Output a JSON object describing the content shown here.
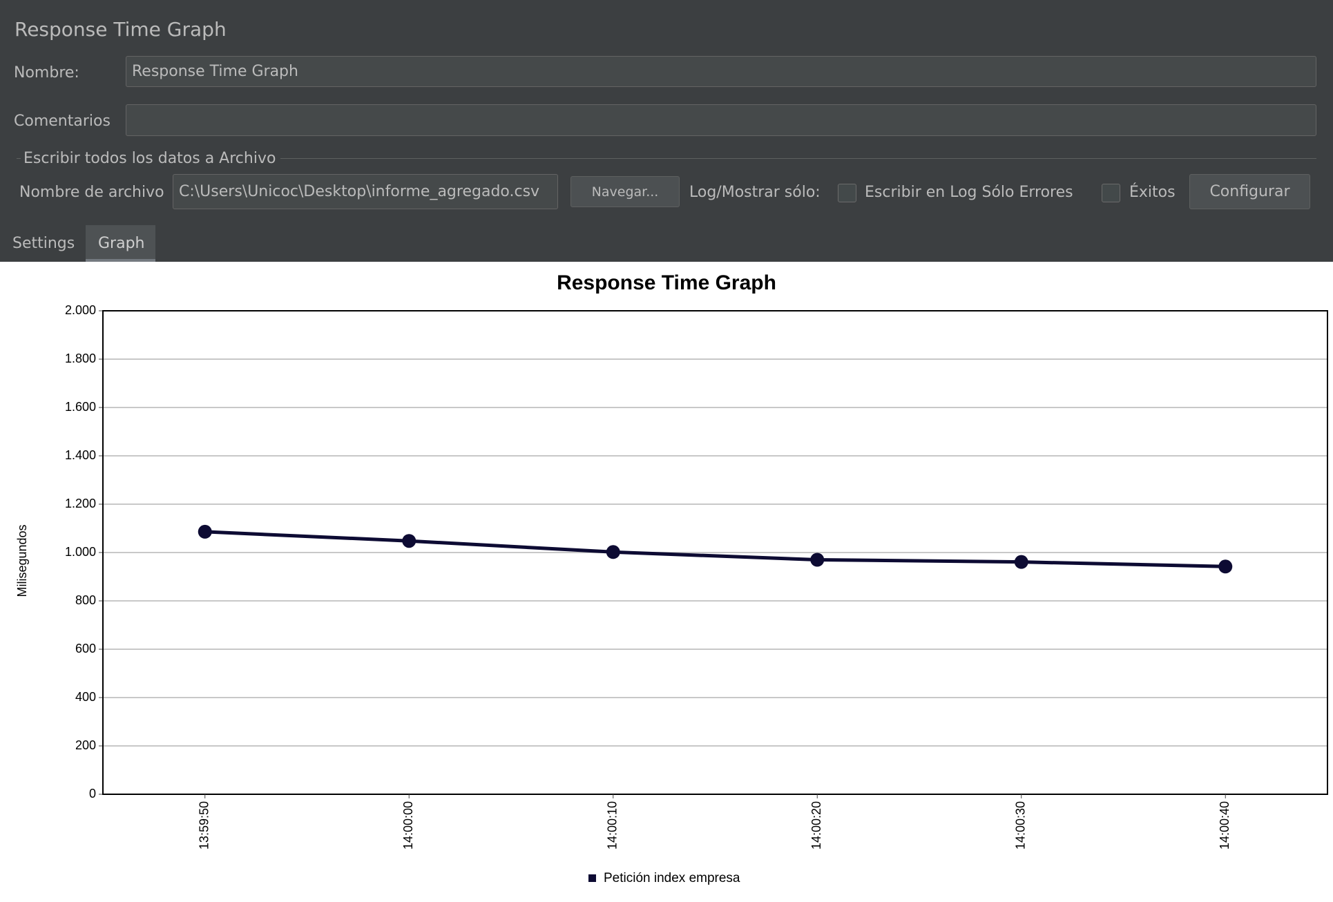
{
  "panel": {
    "title": "Response Time Graph",
    "name_label": "Nombre:",
    "name_value": "Response Time Graph",
    "comments_label": "Comentarios",
    "file_group_label": "Escribir todos los datos a Archivo",
    "file_label": "Nombre de archivo",
    "file_value": "C:\\Users\\Unicoc\\Desktop\\informe_agregado.csv",
    "browse_button": "Navegar...",
    "log_label": "Log/Mostrar sólo:",
    "errors_checkbox": "Escribir en Log Sólo Errores",
    "success_checkbox": "Éxitos",
    "configure_button": "Configurar",
    "tabs": [
      "Settings",
      "Graph"
    ]
  },
  "chart_data": {
    "type": "line",
    "title": "Response Time Graph",
    "y_label": "Milisegundos",
    "categories": [
      "13:59:50",
      "14:00:00",
      "14:00:10",
      "14:00:20",
      "14:00:30",
      "14:00:40"
    ],
    "series": [
      {
        "name": "Petición index empresa",
        "color": "#0d0b33",
        "values": [
          1086,
          1048,
          1002,
          970,
          961,
          942
        ]
      }
    ],
    "ylim": [
      0,
      2000
    ],
    "yticks": [
      0,
      200,
      400,
      600,
      800,
      {
        "value": 1000,
        "label": "1.000"
      },
      {
        "value": 1200,
        "label": "1.200"
      },
      {
        "value": 1400,
        "label": "1.400"
      },
      {
        "value": 1600,
        "label": "1.600"
      },
      {
        "value": 1800,
        "label": "1.800"
      },
      {
        "value": 2000,
        "label": "2.000"
      }
    ],
    "grid": true
  }
}
